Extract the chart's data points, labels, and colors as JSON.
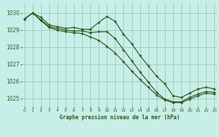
{
  "title": "Graphe pression niveau de la mer (hPa)",
  "bg_color": "#c8eee8",
  "grid_color": "#a0ccbe",
  "line_color": "#2d5a1e",
  "xlim": [
    -0.3,
    23.3
  ],
  "ylim": [
    1024.5,
    1030.6
  ],
  "yticks": [
    1025,
    1026,
    1027,
    1028,
    1029,
    1030
  ],
  "xticks": [
    0,
    1,
    2,
    3,
    4,
    5,
    6,
    7,
    8,
    9,
    10,
    11,
    12,
    13,
    14,
    15,
    16,
    17,
    18,
    19,
    20,
    21,
    22,
    23
  ],
  "series1_x": [
    0,
    1,
    2,
    3,
    4,
    5,
    6,
    7,
    8,
    9,
    10,
    11,
    12,
    13,
    14,
    15,
    16,
    17,
    18,
    19,
    20,
    21,
    22,
    23
  ],
  "series1_y": [
    1029.65,
    1030.0,
    1029.75,
    1029.3,
    1029.2,
    1029.1,
    1029.15,
    1029.05,
    1029.05,
    1029.45,
    1029.8,
    1029.5,
    1028.75,
    1028.2,
    1027.5,
    1026.9,
    1026.3,
    1025.85,
    1025.15,
    1025.05,
    1025.3,
    1025.55,
    1025.65,
    1025.55
  ],
  "series2_x": [
    0,
    1,
    2,
    3,
    4,
    5,
    6,
    7,
    8,
    9,
    10,
    11,
    12,
    13,
    14,
    15,
    16,
    17,
    18,
    19,
    20,
    21,
    22,
    23
  ],
  "series2_y": [
    1029.65,
    1030.0,
    1029.6,
    1029.2,
    1029.1,
    1029.0,
    1028.95,
    1028.95,
    1028.85,
    1028.9,
    1028.9,
    1028.5,
    1027.85,
    1027.2,
    1026.55,
    1025.95,
    1025.35,
    1024.95,
    1024.8,
    1024.8,
    1025.05,
    1025.25,
    1025.4,
    1025.35
  ],
  "series3_x": [
    0,
    1,
    2,
    3,
    4,
    5,
    6,
    7,
    8,
    9,
    10,
    11,
    12,
    13,
    14,
    15,
    16,
    17,
    18,
    19,
    20,
    21,
    22,
    23
  ],
  "series3_y": [
    1029.65,
    1030.0,
    1029.55,
    1029.15,
    1029.0,
    1028.9,
    1028.85,
    1028.8,
    1028.6,
    1028.4,
    1028.05,
    1027.65,
    1027.15,
    1026.6,
    1026.1,
    1025.65,
    1025.2,
    1024.9,
    1024.75,
    1024.75,
    1024.95,
    1025.15,
    1025.3,
    1025.25
  ]
}
